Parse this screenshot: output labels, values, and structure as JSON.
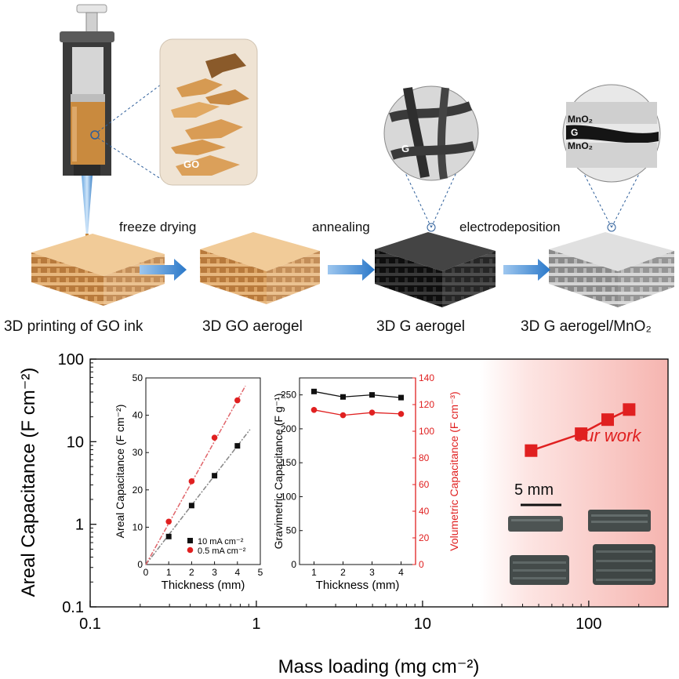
{
  "process": {
    "steps": [
      {
        "label": "freeze drying"
      },
      {
        "label": "annealing"
      },
      {
        "label": "electrodeposition"
      }
    ],
    "stages": [
      {
        "label": "3D printing of GO ink",
        "color": "#d9a060"
      },
      {
        "label": "3D GO aerogel",
        "color": "#d9a060"
      },
      {
        "label": "3D G aerogel",
        "color": "#2a2a2a"
      },
      {
        "label": "3D G aerogel/MnO₂",
        "color": "#a9a9a9"
      }
    ],
    "insets": {
      "go_flakes": "GO",
      "graphene": "G",
      "mno2_top": "MnO₂",
      "g_mid": "G",
      "mno2_bottom": "MnO₂"
    }
  },
  "main_chart": {
    "xlabel": "Mass loading (mg cm⁻²)",
    "ylabel": "Areal Capacitance (F cm⁻²)",
    "x_ticks": [
      "0.1",
      "1",
      "10",
      "100"
    ],
    "y_ticks": [
      "0.1",
      "1",
      "10",
      "100"
    ],
    "annotation": "our work",
    "scale_bar": "5 mm",
    "accent": "#e02020"
  },
  "chart_data": [
    {
      "type": "scatter",
      "xscale": "log",
      "yscale": "log",
      "xlim": [
        0.1,
        300
      ],
      "ylim": [
        0.1,
        100
      ],
      "xlabel": "Mass loading (mg cm⁻²)",
      "ylabel": "Areal Capacitance (F cm⁻²)",
      "series": [
        {
          "name": "our work",
          "color": "#e02020",
          "x": [
            45,
            90,
            130,
            175
          ],
          "y": [
            7.8,
            12.5,
            18.5,
            24.5
          ]
        }
      ]
    },
    {
      "type": "line",
      "xlabel": "Thickness (mm)",
      "ylabel": "Areal Capacitance (F cm⁻²)",
      "xlim": [
        0,
        5
      ],
      "ylim": [
        0,
        50
      ],
      "x_ticks": [
        "0",
        "1",
        "2",
        "3",
        "4",
        "5"
      ],
      "y_ticks": [
        "0",
        "10",
        "20",
        "30",
        "40",
        "50"
      ],
      "series": [
        {
          "name": "10 mA cm⁻²",
          "color": "#111111",
          "x": [
            1,
            2,
            3,
            4
          ],
          "y": [
            7.5,
            15.8,
            23.8,
            31.8
          ]
        },
        {
          "name": "0.5 mA cm⁻²",
          "color": "#e02020",
          "x": [
            1,
            2,
            3,
            4
          ],
          "y": [
            11.5,
            22.3,
            34.0,
            44.0
          ]
        }
      ]
    },
    {
      "type": "line",
      "xlabel": "Thickness (mm)",
      "ylabel": "Gravimetric Capacitance (F g⁻¹)",
      "y2label": "Volumetric Capacitance (F cm⁻³)",
      "xlim": [
        0.5,
        4.5
      ],
      "ylim": [
        0,
        275
      ],
      "y2lim": [
        0,
        140
      ],
      "x_ticks": [
        "1",
        "2",
        "3",
        "4"
      ],
      "y_ticks": [
        "0",
        "50",
        "100",
        "150",
        "200",
        "250"
      ],
      "y2_ticks": [
        "0",
        "20",
        "40",
        "60",
        "80",
        "100",
        "120",
        "140"
      ],
      "series": [
        {
          "name": "Gravimetric",
          "axis": "left",
          "color": "#111111",
          "x": [
            1,
            2,
            3,
            4
          ],
          "y": [
            255,
            247,
            250,
            246
          ]
        },
        {
          "name": "Volumetric",
          "axis": "right",
          "color": "#e02020",
          "x": [
            1,
            2,
            3,
            4
          ],
          "y": [
            116,
            112,
            114,
            113
          ]
        }
      ]
    }
  ]
}
